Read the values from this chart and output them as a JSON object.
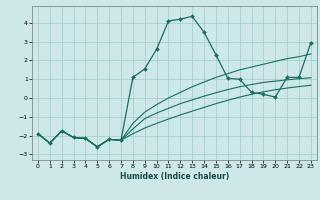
{
  "title": "",
  "xlabel": "Humidex (Indice chaleur)",
  "background_color": "#cce8e8",
  "grid_color": "#aacece",
  "line_color": "#1a6e60",
  "xlim": [
    -0.5,
    23.5
  ],
  "ylim": [
    -3.3,
    4.9
  ],
  "yticks": [
    -3,
    -2,
    -1,
    0,
    1,
    2,
    3,
    4
  ],
  "xticks": [
    0,
    1,
    2,
    3,
    4,
    5,
    6,
    7,
    8,
    9,
    10,
    11,
    12,
    13,
    14,
    15,
    16,
    17,
    18,
    19,
    20,
    21,
    22,
    23
  ],
  "line_main_x": [
    0,
    1,
    2,
    3,
    4,
    5,
    6,
    7,
    8,
    9,
    10,
    11,
    12,
    13,
    14,
    15,
    16,
    17,
    18,
    19,
    20,
    21,
    22,
    23
  ],
  "line_main_y": [
    -1.9,
    -2.4,
    -1.75,
    -2.1,
    -2.15,
    -2.6,
    -2.2,
    -2.25,
    1.1,
    1.55,
    2.6,
    4.1,
    4.2,
    4.35,
    3.5,
    2.3,
    1.05,
    1.0,
    0.3,
    0.2,
    0.05,
    1.1,
    1.1,
    2.95
  ],
  "line_top_x": [
    0,
    1,
    2,
    3,
    4,
    5,
    6,
    7,
    8,
    9,
    10,
    11,
    12,
    13,
    14,
    15,
    16,
    17,
    18,
    19,
    20,
    21,
    22,
    23
  ],
  "line_top_y": [
    -1.9,
    -2.4,
    -1.75,
    -2.1,
    -2.15,
    -2.6,
    -2.2,
    -2.25,
    -1.35,
    -0.75,
    -0.35,
    0.0,
    0.3,
    0.6,
    0.85,
    1.1,
    1.3,
    1.5,
    1.65,
    1.8,
    1.95,
    2.1,
    2.2,
    2.35
  ],
  "line_mid_x": [
    0,
    1,
    2,
    3,
    4,
    5,
    6,
    7,
    8,
    9,
    10,
    11,
    12,
    13,
    14,
    15,
    16,
    17,
    18,
    19,
    20,
    21,
    22,
    23
  ],
  "line_mid_y": [
    -1.9,
    -2.4,
    -1.75,
    -2.1,
    -2.15,
    -2.6,
    -2.2,
    -2.25,
    -1.65,
    -1.1,
    -0.8,
    -0.55,
    -0.3,
    -0.1,
    0.1,
    0.28,
    0.45,
    0.6,
    0.72,
    0.83,
    0.9,
    0.97,
    1.03,
    1.08
  ],
  "line_bot_x": [
    0,
    1,
    2,
    3,
    4,
    5,
    6,
    7,
    8,
    9,
    10,
    11,
    12,
    13,
    14,
    15,
    16,
    17,
    18,
    19,
    20,
    21,
    22,
    23
  ],
  "line_bot_y": [
    -1.9,
    -2.4,
    -1.75,
    -2.1,
    -2.15,
    -2.6,
    -2.2,
    -2.25,
    -1.9,
    -1.6,
    -1.35,
    -1.12,
    -0.9,
    -0.7,
    -0.5,
    -0.3,
    -0.12,
    0.05,
    0.2,
    0.33,
    0.44,
    0.53,
    0.61,
    0.68
  ]
}
